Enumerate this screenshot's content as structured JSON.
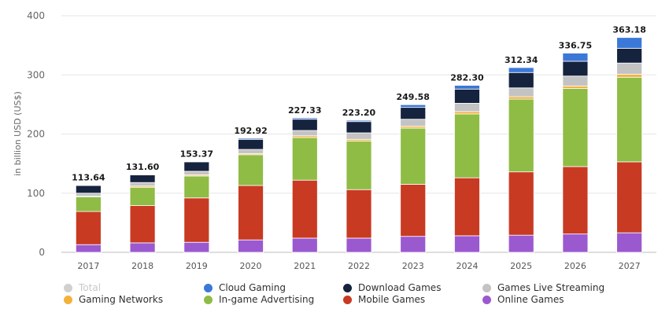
{
  "chart_data": {
    "type": "bar",
    "stacked": true,
    "ylabel": "in billion USD (US$)",
    "ylim": [
      0,
      400
    ],
    "yticks": [
      "0",
      "100",
      "200",
      "300",
      "400"
    ],
    "grid": true,
    "legend_position": "bottom",
    "categories": [
      "2017",
      "2018",
      "2019",
      "2020",
      "2021",
      "2022",
      "2023",
      "2024",
      "2025",
      "2026",
      "2027"
    ],
    "totals": [
      "113.64",
      "131.60",
      "153.37",
      "192.92",
      "227.33",
      "223.20",
      "249.58",
      "282.30",
      "312.34",
      "336.75",
      "363.18"
    ],
    "series": [
      {
        "name": "Online Games",
        "color": "#9b59d0",
        "values": [
          13,
          16,
          17,
          21,
          24,
          24,
          27,
          28,
          29,
          31,
          33
        ]
      },
      {
        "name": "Mobile Games",
        "color": "#c83a22",
        "values": [
          56,
          63,
          75,
          92,
          98,
          82,
          88,
          98,
          107,
          114,
          120
        ]
      },
      {
        "name": "In-game Advertising",
        "color": "#8fbc45",
        "values": [
          25,
          31,
          37,
          52,
          72,
          82,
          95,
          108,
          123,
          132,
          143
        ]
      },
      {
        "name": "Gaming Networks",
        "color": "#f3b13c",
        "values": [
          1,
          2,
          2,
          2,
          3,
          3,
          3,
          4,
          4,
          4,
          5
        ]
      },
      {
        "name": "Games Live Streaming",
        "color": "#c3c3c3",
        "values": [
          5,
          6,
          6,
          7,
          9,
          11,
          12,
          14,
          15,
          17,
          19
        ]
      },
      {
        "name": "Download Games",
        "color": "#16233e",
        "values": [
          13,
          13,
          16,
          17,
          19,
          19,
          20,
          24,
          26,
          25,
          25
        ]
      },
      {
        "name": "Cloud Gaming",
        "color": "#3c78d8",
        "values": [
          0.64,
          0.6,
          0.37,
          1.92,
          2.33,
          2.2,
          4.58,
          6.3,
          8.34,
          13.75,
          18.18
        ]
      }
    ]
  },
  "legend": [
    {
      "label": "Total",
      "color": "#d0d0d0",
      "muted": true
    },
    {
      "label": "Cloud Gaming",
      "color": "#3c78d8"
    },
    {
      "label": "Download Games",
      "color": "#16233e"
    },
    {
      "label": "Games Live Streaming",
      "color": "#c3c3c3"
    },
    {
      "label": "Gaming Networks",
      "color": "#f3b13c"
    },
    {
      "label": "In-game Advertising",
      "color": "#8fbc45"
    },
    {
      "label": "Mobile Games",
      "color": "#c83a22"
    },
    {
      "label": "Online Games",
      "color": "#9b59d0"
    }
  ]
}
